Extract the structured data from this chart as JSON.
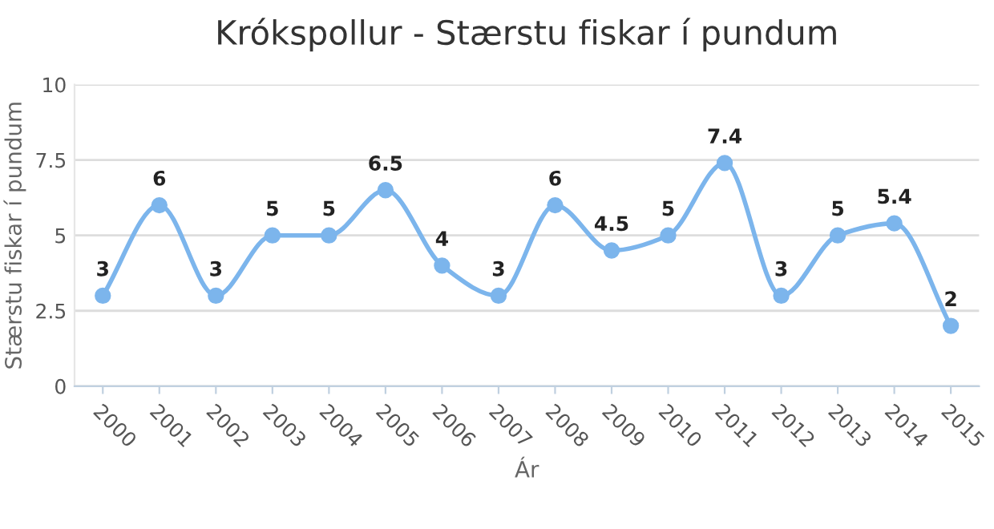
{
  "chart_data": {
    "type": "line",
    "title": "Krókspollur - Stærstu fiskar í pundum",
    "xlabel": "Ár",
    "ylabel": "Stærstu fiskar í pundum",
    "categories": [
      "2000",
      "2001",
      "2002",
      "2003",
      "2004",
      "2005",
      "2006",
      "2007",
      "2008",
      "2009",
      "2010",
      "2011",
      "2012",
      "2013",
      "2014",
      "2015"
    ],
    "series": [
      {
        "color": "#7cb5ec",
        "values": [
          3,
          6,
          3,
          5,
          5,
          6.5,
          4,
          3,
          6,
          4.5,
          5,
          7.4,
          3,
          5,
          5.4,
          2
        ]
      }
    ],
    "ylim": [
      0,
      10
    ],
    "yticks": [
      0,
      2.5,
      5,
      7.5,
      10
    ],
    "grid": "y",
    "marker": "circle",
    "line_style": "solid",
    "data_labels": true
  }
}
